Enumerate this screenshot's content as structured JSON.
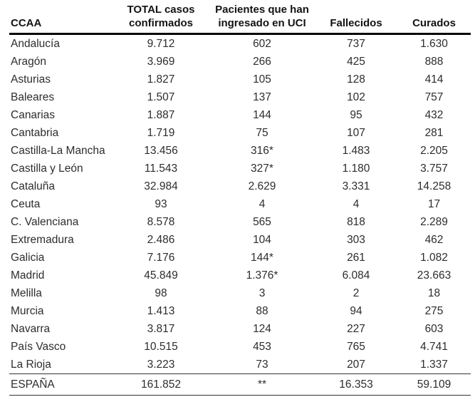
{
  "colors": {
    "background": "#ffffff",
    "header_text": "#131313",
    "body_text": "#2d2d2d",
    "header_rule": "#060606",
    "total_rule": "#333333"
  },
  "table": {
    "header": {
      "ccaa": "CCAA",
      "col2": [
        "TOTAL casos",
        "confirmados"
      ],
      "col3": [
        "Pacientes que han",
        "ingresado en UCI"
      ],
      "col4": "Fallecidos",
      "col5": "Curados"
    },
    "rows": [
      [
        "Andalucía",
        "9.712",
        "602",
        "737",
        "1.630"
      ],
      [
        "Aragón",
        "3.969",
        "266",
        "425",
        "888"
      ],
      [
        "Asturias",
        "1.827",
        "105",
        "128",
        "414"
      ],
      [
        "Baleares",
        "1.507",
        "137",
        "102",
        "757"
      ],
      [
        "Canarias",
        "1.887",
        "144",
        "95",
        "432"
      ],
      [
        "Cantabria",
        "1.719",
        "75",
        "107",
        "281"
      ],
      [
        "Castilla-La Mancha",
        "13.456",
        "316*",
        "1.483",
        "2.205"
      ],
      [
        "Castilla y León",
        "11.543",
        "327*",
        "1.180",
        "3.757"
      ],
      [
        "Cataluña",
        "32.984",
        "2.629",
        "3.331",
        "14.258"
      ],
      [
        "Ceuta",
        "93",
        "4",
        "4",
        "17"
      ],
      [
        "C. Valenciana",
        "8.578",
        "565",
        "818",
        "2.289"
      ],
      [
        "Extremadura",
        "2.486",
        "104",
        "303",
        "462"
      ],
      [
        "Galicia",
        "7.176",
        "144*",
        "261",
        "1.082"
      ],
      [
        "Madrid",
        "45.849",
        "1.376*",
        "6.084",
        "23.663"
      ],
      [
        "Melilla",
        "98",
        "3",
        "2",
        "18"
      ],
      [
        "Murcia",
        "1.413",
        "88",
        "94",
        "275"
      ],
      [
        "Navarra",
        "3.817",
        "124",
        "227",
        "603"
      ],
      [
        "País Vasco",
        "10.515",
        "453",
        "765",
        "4.741"
      ],
      [
        "La Rioja",
        "3.223",
        "73",
        "207",
        "1.337"
      ]
    ],
    "total_row": [
      "ESPAÑA",
      "161.852",
      "**",
      "16.353",
      "59.109"
    ]
  }
}
